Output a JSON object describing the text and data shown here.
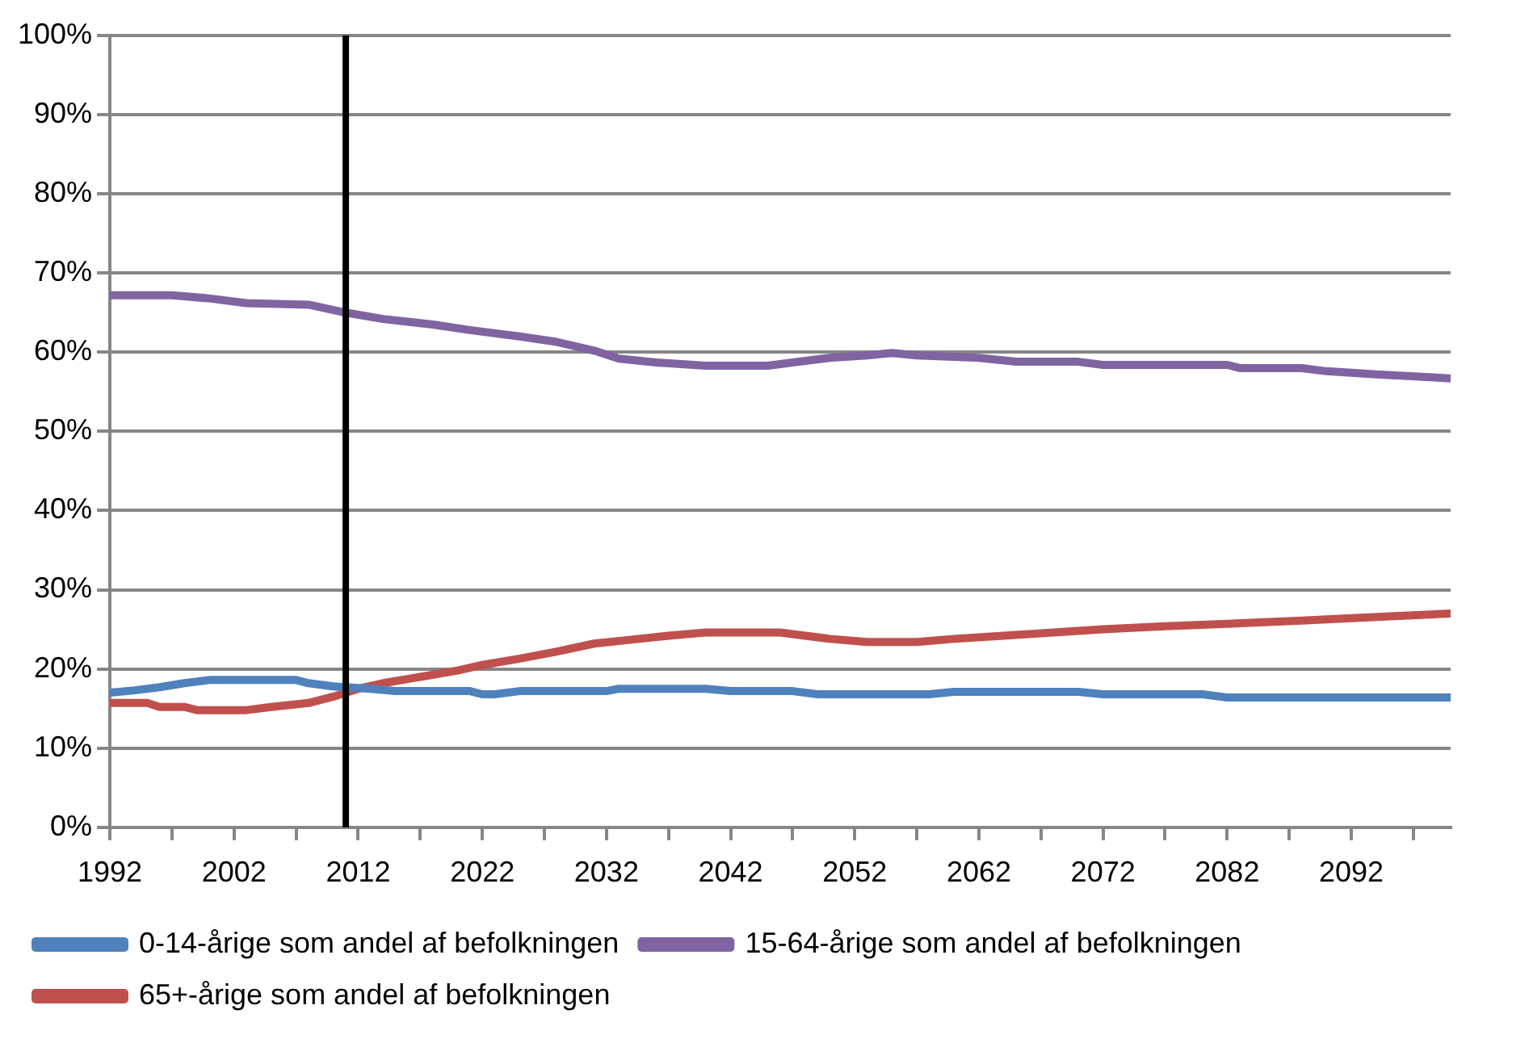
{
  "chart_data": {
    "type": "line",
    "xlim": [
      1992,
      2100
    ],
    "xticks": [
      1992,
      {
        "value": 1997,
        "label": null
      },
      2002,
      {
        "value": 2007,
        "label": null
      },
      2012,
      {
        "value": 2017,
        "label": null
      },
      2022,
      {
        "value": 2027,
        "label": null
      },
      2032,
      {
        "value": 2037,
        "label": null
      },
      2042,
      {
        "value": 2047,
        "label": null
      },
      2052,
      {
        "value": 2057,
        "label": null
      },
      2062,
      {
        "value": 2067,
        "label": null
      },
      2072,
      {
        "value": 2077,
        "label": null
      },
      2082,
      {
        "value": 2087,
        "label": null
      },
      2092,
      {
        "value": 2097,
        "label": null
      }
    ],
    "ylim": [
      0,
      100
    ],
    "yticks": [
      {
        "value": 0,
        "label": "0%"
      },
      {
        "value": 10,
        "label": "10%"
      },
      {
        "value": 20,
        "label": "20%"
      },
      {
        "value": 30,
        "label": "30%"
      },
      {
        "value": 40,
        "label": "40%"
      },
      {
        "value": 50,
        "label": "50%"
      },
      {
        "value": 60,
        "label": "60%"
      },
      {
        "value": 70,
        "label": "70%"
      },
      {
        "value": 80,
        "label": "80%"
      },
      {
        "value": 90,
        "label": "90%"
      },
      {
        "value": 100,
        "label": "100%"
      }
    ],
    "grid": "y",
    "legend": "bottom",
    "marker": "none",
    "line_style": "solid",
    "ref_lines": [
      {
        "axis": "x",
        "value": 2011,
        "color": "#000000"
      }
    ],
    "series": [
      {
        "name": "0-14-årige som andel af befolkningen",
        "color": "#4f81bd",
        "x": [
          1992,
          1994,
          1996,
          1998,
          2000,
          2007,
          2008,
          2010,
          2013,
          2015,
          2021,
          2022,
          2023,
          2025,
          2032,
          2033,
          2040,
          2042,
          2047,
          2049,
          2058,
          2060,
          2070,
          2072,
          2080,
          2082,
          2100
        ],
        "values": [
          17,
          17.3,
          17.7,
          18.2,
          18.6,
          18.6,
          18.2,
          17.8,
          17.5,
          17.2,
          17.2,
          16.8,
          16.8,
          17.2,
          17.2,
          17.5,
          17.5,
          17.2,
          17.2,
          16.8,
          16.8,
          17.1,
          17.1,
          16.8,
          16.8,
          16.4,
          16.4
        ]
      },
      {
        "name": "15-64-årige som andel af befolkningen",
        "color": "#8064a2",
        "x": [
          1992,
          1997,
          2000,
          2003,
          2008,
          2011,
          2014,
          2018,
          2021,
          2025,
          2028,
          2031,
          2033,
          2036,
          2040,
          2045,
          2047,
          2050,
          2053,
          2055,
          2057,
          2062,
          2065,
          2070,
          2072,
          2082,
          2083,
          2088,
          2090,
          2094,
          2100
        ],
        "values": [
          67.2,
          67.2,
          66.8,
          66.2,
          66,
          65,
          64.2,
          63.5,
          62.8,
          62,
          61.3,
          60.2,
          59.2,
          58.7,
          58.3,
          58.3,
          58.7,
          59.3,
          59.6,
          59.9,
          59.6,
          59.3,
          58.8,
          58.8,
          58.4,
          58.4,
          58,
          58,
          57.6,
          57.2,
          56.7
        ]
      },
      {
        "name": "65+-årige som andel af befolkningen",
        "color": "#c0504d",
        "x": [
          1992,
          1995,
          1996,
          1998,
          1999,
          2003,
          2005,
          2008,
          2010,
          2012,
          2014,
          2017,
          2020,
          2022,
          2025,
          2028,
          2031,
          2034,
          2037,
          2040,
          2046,
          2048,
          2050,
          2053,
          2057,
          2060,
          2064,
          2068,
          2072,
          2077,
          2082,
          2088,
          2093,
          2100
        ],
        "values": [
          15.7,
          15.7,
          15.2,
          15.2,
          14.8,
          14.8,
          15.2,
          15.7,
          16.5,
          17.5,
          18.2,
          19,
          19.8,
          20.5,
          21.3,
          22.2,
          23.2,
          23.7,
          24.2,
          24.6,
          24.6,
          24.2,
          23.8,
          23.4,
          23.4,
          23.8,
          24.2,
          24.6,
          25,
          25.4,
          25.7,
          26.1,
          26.5,
          27
        ]
      }
    ]
  }
}
